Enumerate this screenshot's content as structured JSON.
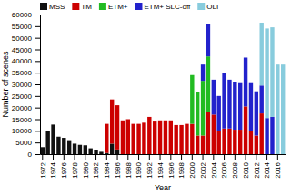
{
  "chart_data": {
    "type": "bar",
    "stacked": true,
    "legend": "upper left",
    "grid": false,
    "xlabel": "Year",
    "ylabel": "Number of scenes",
    "categories": [
      "1972",
      null,
      "1974",
      null,
      "1976",
      null,
      "1978",
      null,
      "1980",
      null,
      "1982",
      null,
      "1984",
      null,
      "1986",
      null,
      "1988",
      null,
      "1990",
      null,
      "1992",
      null,
      "1994",
      null,
      "1996",
      null,
      "1998",
      null,
      "2000",
      null,
      "2002",
      null,
      "2004",
      null,
      "2006",
      null,
      "2008",
      null,
      "2010",
      null,
      "2012",
      null,
      "2014",
      null,
      "2016",
      null
    ],
    "series": [
      {
        "name": "MSS",
        "color": "#111111",
        "values": [
          3000,
          10000,
          12700,
          7500,
          7000,
          6000,
          4500,
          4000,
          3800,
          2500,
          1700,
          1000,
          500,
          4500,
          2000,
          0,
          0,
          0,
          0,
          0,
          0,
          0,
          0,
          0,
          0,
          0,
          0,
          0,
          0,
          0,
          0,
          0,
          0,
          0,
          0,
          0,
          0,
          0,
          0,
          0,
          0,
          0,
          0,
          0,
          0,
          0
        ]
      },
      {
        "name": "TM",
        "color": "#cc0000",
        "values": [
          0,
          0,
          0,
          0,
          0,
          0,
          0,
          0,
          0,
          0,
          0,
          0,
          12500,
          19000,
          19000,
          14500,
          15000,
          13000,
          13000,
          13500,
          16000,
          14000,
          14500,
          14500,
          14500,
          12500,
          12500,
          13000,
          13000,
          8000,
          8000,
          18000,
          17000,
          10000,
          11000,
          11000,
          10500,
          10500,
          20500,
          10000,
          8000,
          17500,
          0,
          0,
          0,
          0
        ]
      },
      {
        "name": "ETM+",
        "color": "#22bb22",
        "values": [
          0,
          0,
          0,
          0,
          0,
          0,
          0,
          0,
          0,
          0,
          0,
          0,
          0,
          0,
          0,
          0,
          0,
          0,
          0,
          0,
          0,
          0,
          0,
          0,
          0,
          0,
          0,
          0,
          21000,
          18500,
          23500,
          24000,
          0,
          0,
          0,
          0,
          0,
          0,
          0,
          0,
          0,
          0,
          0,
          0,
          0,
          0
        ]
      },
      {
        "name": "ETM+ SLC-off",
        "color": "#2222cc",
        "values": [
          0,
          0,
          0,
          0,
          0,
          0,
          0,
          0,
          0,
          0,
          0,
          0,
          0,
          0,
          0,
          0,
          0,
          0,
          0,
          0,
          0,
          0,
          0,
          0,
          0,
          0,
          0,
          0,
          0,
          0,
          7000,
          14000,
          15000,
          15000,
          24000,
          21000,
          20500,
          20000,
          21000,
          20500,
          19000,
          12000,
          15500,
          16000,
          0,
          0
        ]
      },
      {
        "name": "OLI",
        "color": "#88ccdd",
        "values": [
          0,
          0,
          0,
          0,
          0,
          0,
          0,
          0,
          0,
          0,
          0,
          0,
          0,
          0,
          0,
          0,
          0,
          0,
          0,
          0,
          0,
          0,
          0,
          0,
          0,
          0,
          0,
          0,
          0,
          0,
          0,
          0,
          0,
          0,
          0,
          0,
          0,
          0,
          0,
          0,
          0,
          27000,
          38500,
          38500,
          38500,
          38500
        ]
      }
    ],
    "ylim": [
      0,
      60000
    ],
    "yticks": [
      0,
      5000,
      10000,
      15000,
      20000,
      25000,
      30000,
      35000,
      40000,
      45000,
      50000,
      55000,
      60000
    ]
  }
}
